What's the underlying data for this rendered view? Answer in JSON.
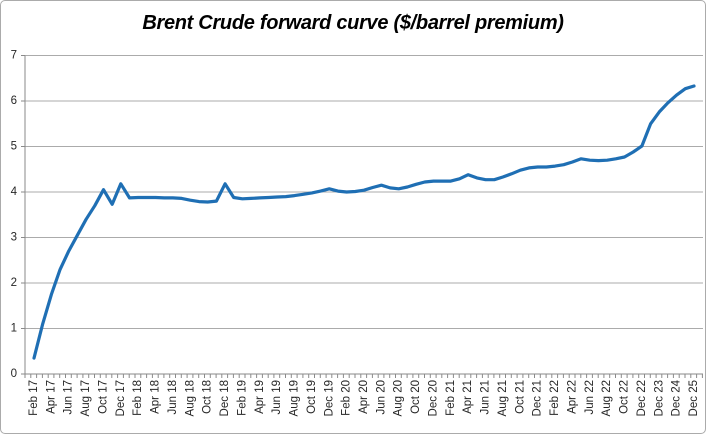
{
  "chart_data": {
    "type": "line",
    "title": "Brent Crude forward curve ($/barrel premium)",
    "categories": [
      "Feb 17",
      "Mar 17",
      "Apr 17",
      "May 17",
      "Jun 17",
      "Jul 17",
      "Aug 17",
      "Sep 17",
      "Oct 17",
      "Nov 17",
      "Dec 17",
      "Jan 18",
      "Feb 18",
      "Mar 18",
      "Apr 18",
      "May 18",
      "Jun 18",
      "Jul 18",
      "Aug 18",
      "Sep 18",
      "Oct 18",
      "Nov 18",
      "Dec 18",
      "Jan 19",
      "Feb 19",
      "Mar 19",
      "Apr 19",
      "May 19",
      "Jun 19",
      "Jul 19",
      "Aug 19",
      "Sep 19",
      "Oct 19",
      "Nov 19",
      "Dec 19",
      "Jan 20",
      "Feb 20",
      "Mar 20",
      "Apr 20",
      "May 20",
      "Jun 20",
      "Jul 20",
      "Aug 20",
      "Sep 20",
      "Oct 20",
      "Nov 20",
      "Dec 20",
      "Jan 21",
      "Feb 21",
      "Mar 21",
      "Apr 21",
      "May 21",
      "Jun 21",
      "Jul 21",
      "Aug 21",
      "Sep 21",
      "Oct 21",
      "Nov 21",
      "Dec 21",
      "Jan 22",
      "Feb 22",
      "Mar 22",
      "Apr 22",
      "May 22",
      "Jun 22",
      "Jul 22",
      "Aug 22",
      "Sep 22",
      "Oct 22",
      "Nov 22",
      "Dec 22",
      "Jun 23",
      "Dec 23",
      "Jun 24",
      "Dec 24",
      "Jun 25",
      "Dec 25"
    ],
    "values": [
      0.35,
      1.1,
      1.75,
      2.3,
      2.7,
      3.05,
      3.4,
      3.7,
      4.05,
      3.73,
      4.18,
      3.87,
      3.88,
      3.88,
      3.88,
      3.87,
      3.87,
      3.86,
      3.82,
      3.79,
      3.78,
      3.8,
      4.18,
      3.88,
      3.85,
      3.86,
      3.87,
      3.88,
      3.89,
      3.9,
      3.92,
      3.95,
      3.98,
      4.02,
      4.07,
      4.02,
      4.0,
      4.01,
      4.04,
      4.1,
      4.15,
      4.09,
      4.07,
      4.11,
      4.17,
      4.22,
      4.24,
      4.24,
      4.24,
      4.29,
      4.38,
      4.31,
      4.27,
      4.27,
      4.33,
      4.4,
      4.48,
      4.53,
      4.55,
      4.55,
      4.57,
      4.6,
      4.66,
      4.73,
      4.7,
      4.69,
      4.7,
      4.73,
      4.77,
      4.88,
      5.01,
      5.5,
      5.76,
      5.96,
      6.13,
      6.27,
      6.33
    ],
    "x_label_every": 2,
    "visible_x_labels": [
      "Feb 17",
      "Apr 17",
      "Jun 17",
      "Aug 17",
      "Oct 17",
      "Dec 17",
      "Feb 18",
      "Apr 18",
      "Jun 18",
      "Aug 18",
      "Oct 18",
      "Dec 18",
      "Feb 19",
      "Apr 19",
      "Jun 19",
      "Aug 19",
      "Oct 19",
      "Dec 19",
      "Feb 20",
      "Apr 20",
      "Jun 20",
      "Aug 20",
      "Oct 20",
      "Dec 20",
      "Feb 21",
      "Apr 21",
      "Jun 21",
      "Aug 21",
      "Oct 21",
      "Dec 21",
      "Feb 22",
      "Apr 22",
      "Jun 22",
      "Aug 22",
      "Oct 22",
      "Dec 22",
      "Dec 23",
      "Dec 24",
      "Dec 25"
    ],
    "y_ticks": [
      0,
      1,
      2,
      3,
      4,
      5,
      6,
      7
    ],
    "ylim": [
      0,
      7
    ],
    "xlabel": "",
    "ylabel": "",
    "grid": "horizontal",
    "legend": "none",
    "line_color": "#1f6fb4"
  },
  "style": {
    "grid_color": "#ababab",
    "axis_color": "#8a8a8a",
    "text_color": "#262626",
    "border_color": "#ababab",
    "background_color": "#ffffff"
  }
}
